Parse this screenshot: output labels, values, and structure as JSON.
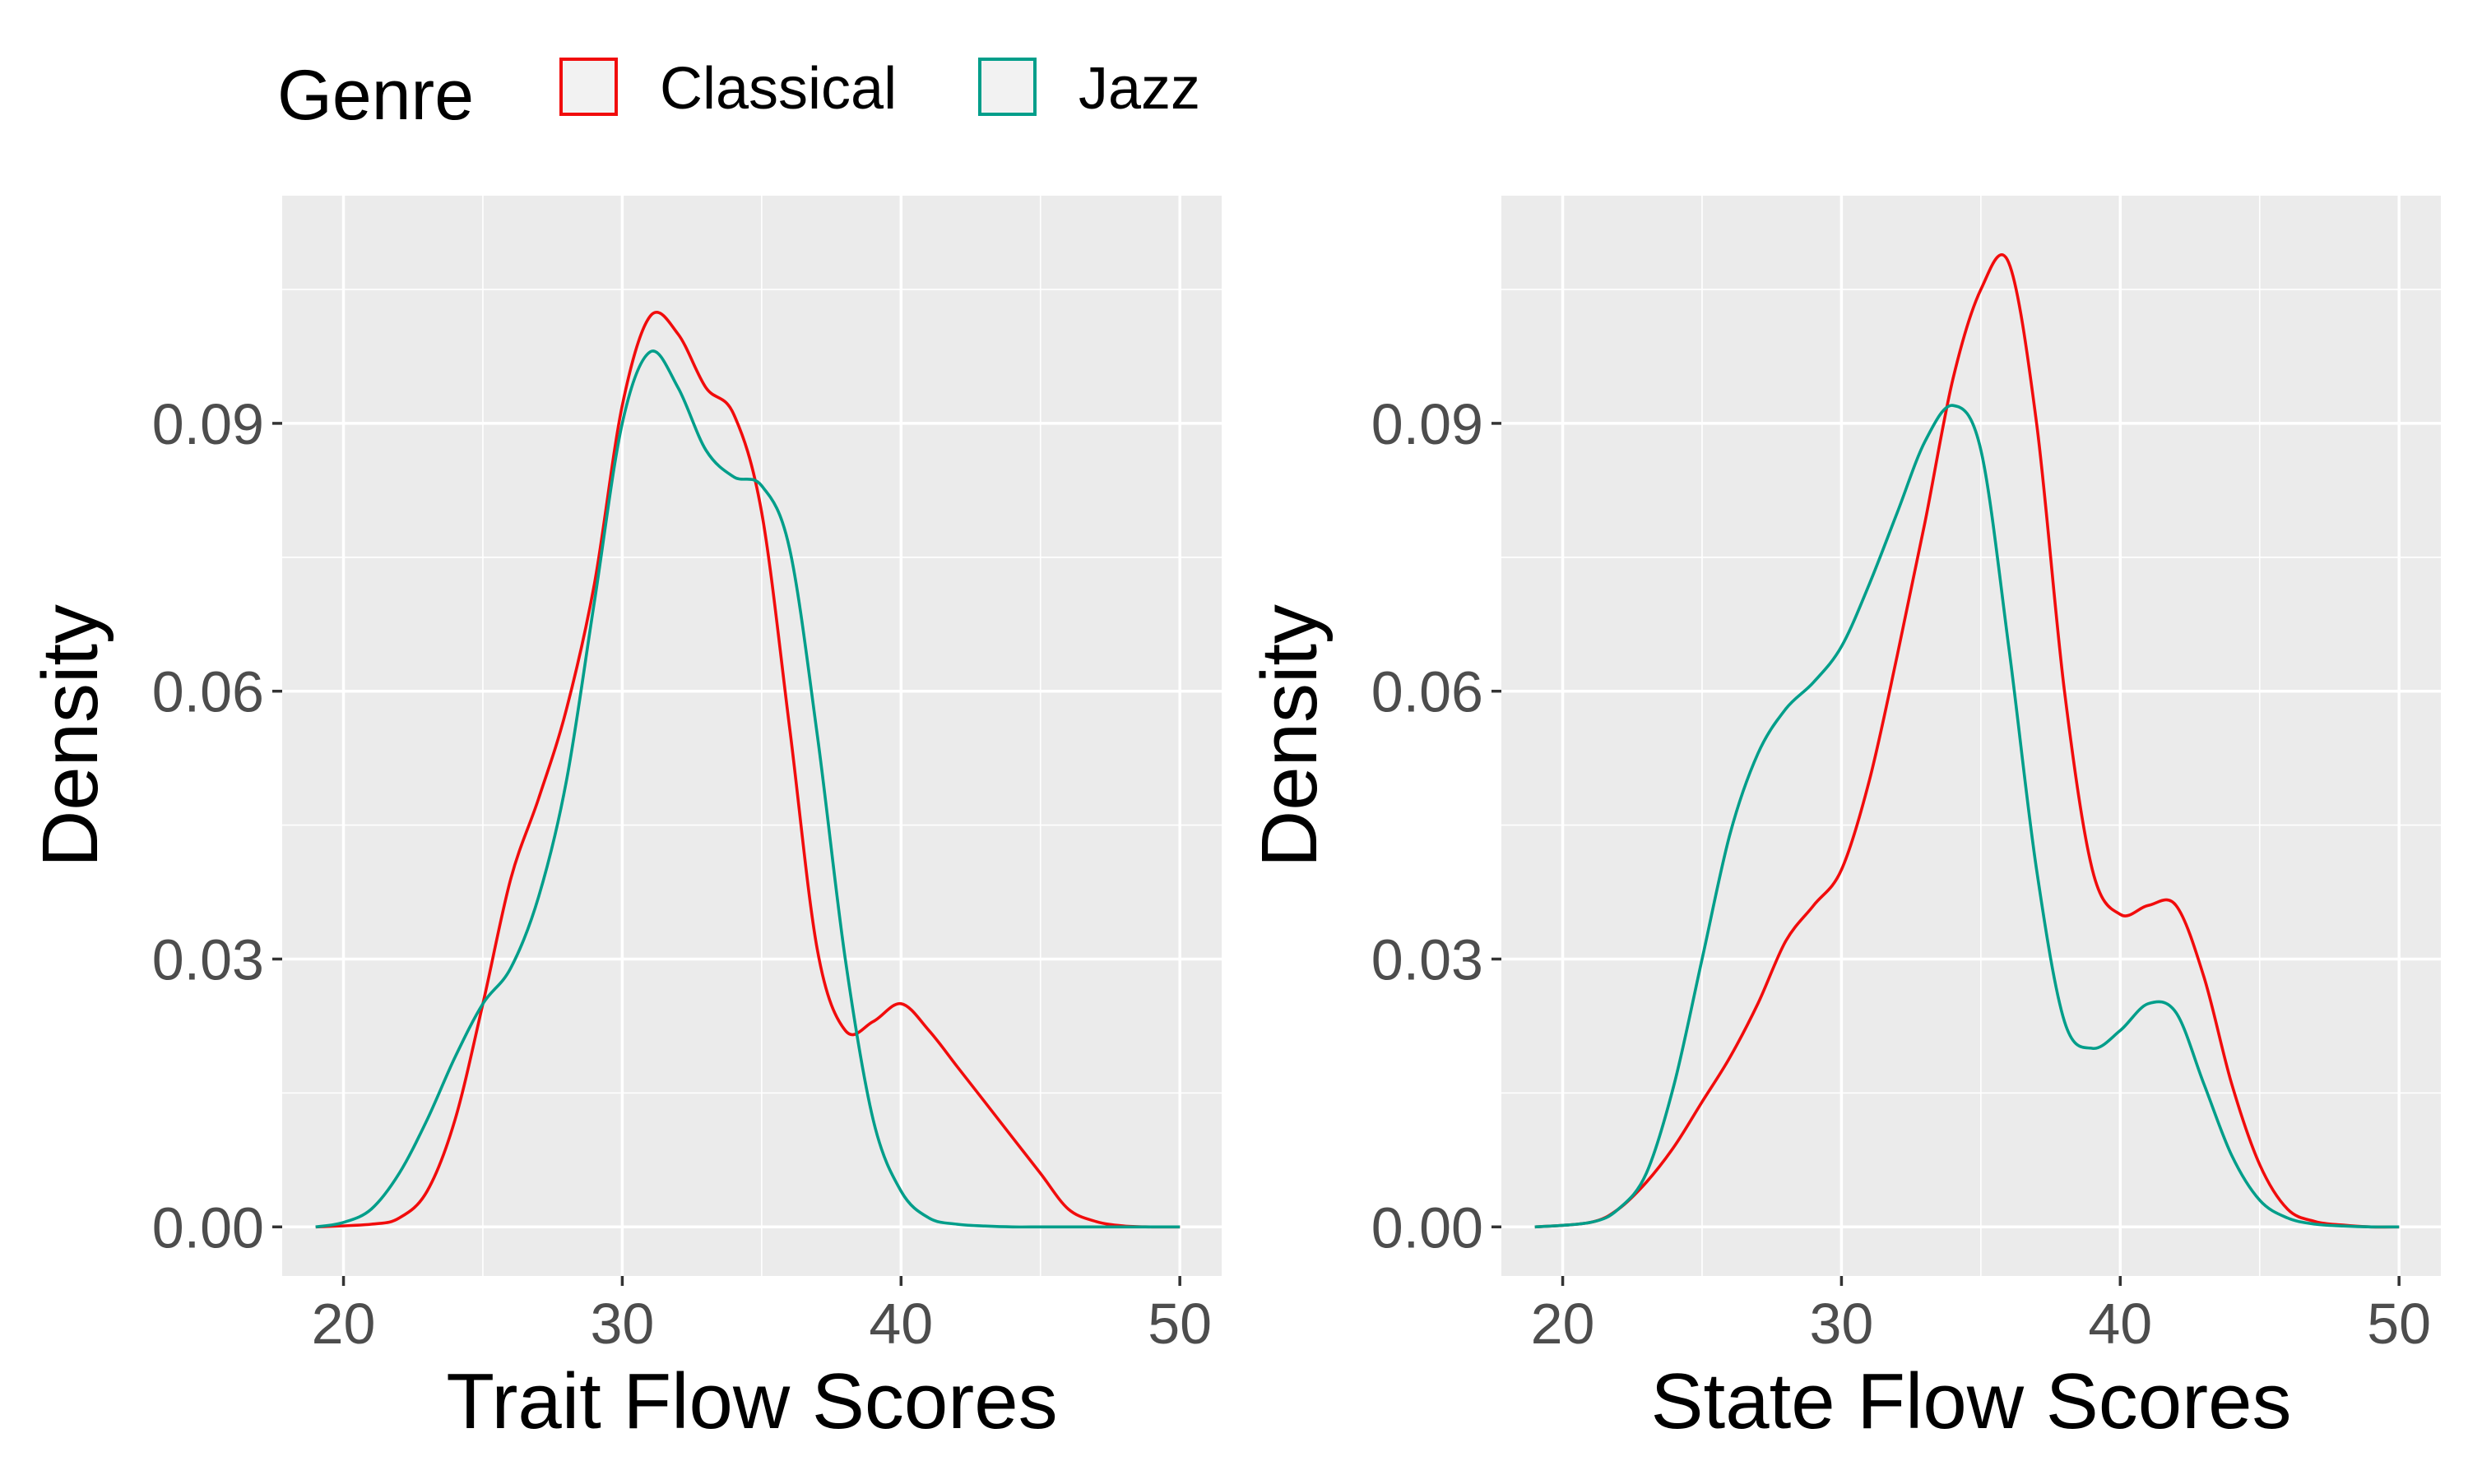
{
  "legend": {
    "title": "Genre",
    "position": "top-left",
    "entries": [
      {
        "label": "Classical",
        "color": "#f10c0c"
      },
      {
        "label": "Jazz",
        "color": "#009e8a"
      }
    ]
  },
  "chart_data": [
    {
      "type": "line",
      "xlabel": "Trait Flow Scores",
      "ylabel": "Density",
      "xlim": [
        17.8,
        51.5
      ],
      "ylim": [
        -0.0055,
        0.1155
      ],
      "xticks": [
        20,
        30,
        40,
        50
      ],
      "xtick_labels": [
        "20",
        "30",
        "40",
        "50"
      ],
      "yticks": [
        0.0,
        0.03,
        0.06,
        0.09
      ],
      "ytick_labels": [
        "0.00",
        "0.03",
        "0.06",
        "0.09"
      ],
      "grid": true,
      "series": [
        {
          "name": "Classical",
          "color": "#f10c0c",
          "x": [
            19,
            21,
            22,
            23,
            24,
            25,
            26,
            27,
            28,
            29,
            30,
            31,
            32,
            33,
            34,
            35,
            36,
            37,
            38,
            39,
            40,
            41,
            42,
            43,
            44,
            45,
            46,
            47,
            48,
            49,
            50
          ],
          "y": [
            0.0,
            0.0003,
            0.001,
            0.004,
            0.012,
            0.025,
            0.039,
            0.048,
            0.058,
            0.072,
            0.092,
            0.102,
            0.1,
            0.094,
            0.091,
            0.08,
            0.056,
            0.031,
            0.022,
            0.023,
            0.025,
            0.022,
            0.018,
            0.014,
            0.01,
            0.006,
            0.002,
            0.0006,
            0.0001,
            0.0,
            0.0
          ]
        },
        {
          "name": "Jazz",
          "color": "#009e8a",
          "x": [
            19,
            20,
            21,
            22,
            23,
            24,
            25,
            26,
            27,
            28,
            29,
            30,
            31,
            32,
            33,
            34,
            35,
            36,
            37,
            38,
            39,
            40,
            41,
            42,
            43,
            44,
            45,
            46,
            47,
            48,
            49,
            50
          ],
          "y": [
            0.0,
            0.0005,
            0.002,
            0.006,
            0.012,
            0.019,
            0.025,
            0.029,
            0.037,
            0.05,
            0.07,
            0.09,
            0.098,
            0.094,
            0.087,
            0.084,
            0.083,
            0.076,
            0.055,
            0.03,
            0.012,
            0.004,
            0.001,
            0.0003,
            0.0001,
            0.0,
            0.0,
            0.0,
            0.0,
            0.0,
            0.0,
            0.0
          ]
        }
      ]
    },
    {
      "type": "line",
      "xlabel": "State Flow Scores",
      "ylabel": "Density",
      "xlim": [
        17.8,
        51.5
      ],
      "ylim": [
        -0.0055,
        0.1155
      ],
      "xticks": [
        20,
        30,
        40,
        50
      ],
      "xtick_labels": [
        "20",
        "30",
        "40",
        "50"
      ],
      "yticks": [
        0.0,
        0.03,
        0.06,
        0.09
      ],
      "ytick_labels": [
        "0.00",
        "0.03",
        "0.06",
        "0.09"
      ],
      "grid": true,
      "series": [
        {
          "name": "Classical",
          "color": "#f10c0c",
          "x": [
            19,
            21,
            22,
            23,
            24,
            25,
            26,
            27,
            28,
            29,
            30,
            31,
            32,
            33,
            34,
            35,
            36,
            37,
            38,
            39,
            40,
            41,
            42,
            43,
            44,
            45,
            46,
            47,
            48,
            49,
            50
          ],
          "y": [
            0.0,
            0.0005,
            0.002,
            0.005,
            0.009,
            0.014,
            0.019,
            0.025,
            0.032,
            0.036,
            0.04,
            0.05,
            0.064,
            0.079,
            0.095,
            0.105,
            0.108,
            0.09,
            0.06,
            0.04,
            0.035,
            0.036,
            0.036,
            0.028,
            0.016,
            0.007,
            0.002,
            0.0006,
            0.0002,
            0.0,
            0.0
          ]
        },
        {
          "name": "Jazz",
          "color": "#009e8a",
          "x": [
            19,
            21,
            22,
            23,
            24,
            25,
            26,
            27,
            28,
            29,
            30,
            31,
            32,
            33,
            34,
            35,
            36,
            37,
            38,
            39,
            40,
            41,
            42,
            43,
            44,
            45,
            46,
            47,
            48,
            49,
            50
          ],
          "y": [
            0.0,
            0.0005,
            0.002,
            0.006,
            0.016,
            0.03,
            0.044,
            0.053,
            0.058,
            0.061,
            0.065,
            0.072,
            0.08,
            0.088,
            0.092,
            0.087,
            0.065,
            0.04,
            0.023,
            0.02,
            0.022,
            0.025,
            0.024,
            0.016,
            0.008,
            0.003,
            0.001,
            0.0003,
            0.0001,
            0.0,
            0.0
          ]
        }
      ]
    }
  ]
}
